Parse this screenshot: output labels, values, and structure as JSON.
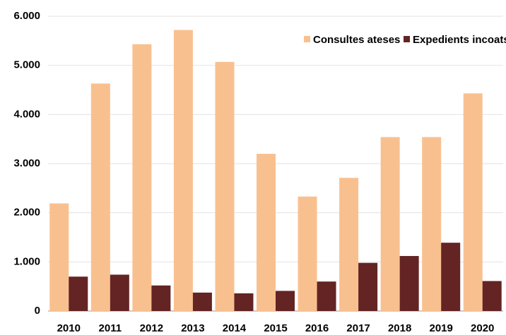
{
  "chart_data": {
    "type": "bar",
    "categories": [
      "2010",
      "2011",
      "2012",
      "2013",
      "2014",
      "2015",
      "2016",
      "2017",
      "2018",
      "2019",
      "2020"
    ],
    "series": [
      {
        "name": "Consultes ateses",
        "color": "#f9c08f",
        "values": [
          2190,
          4630,
          5430,
          5720,
          5070,
          3200,
          2330,
          2710,
          3540,
          3540,
          4430
        ]
      },
      {
        "name": "Expedients incoats",
        "color": "#632423",
        "values": [
          700,
          740,
          520,
          375,
          360,
          410,
          600,
          980,
          1120,
          1390,
          610
        ]
      }
    ],
    "ylim": [
      0,
      6000
    ],
    "yticks": [
      0,
      {
        "value": 1000,
        "label": "1.000"
      },
      {
        "value": 2000,
        "label": "2.000"
      },
      {
        "value": 3000,
        "label": "3.000"
      },
      {
        "value": 4000,
        "label": "4.000"
      },
      {
        "value": 5000,
        "label": "5.000"
      },
      {
        "value": 6000,
        "label": "6.000"
      }
    ],
    "grid": true,
    "legend": "top-right"
  }
}
